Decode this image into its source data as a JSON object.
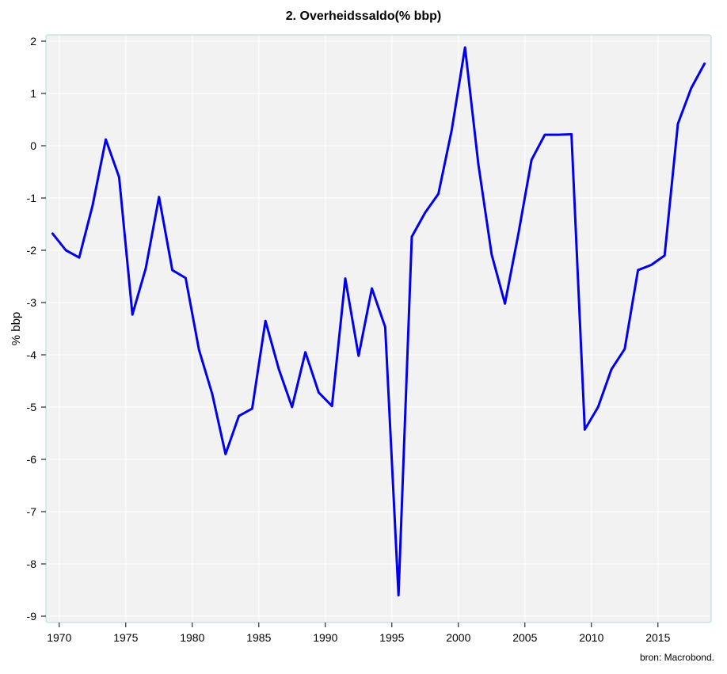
{
  "chart_data": {
    "type": "line",
    "title": "2. Overheidssaldo(% bbp)",
    "xlabel": "",
    "ylabel": "% bbp",
    "source": "bron: Macrobond.",
    "xlim": [
      1969,
      2019
    ],
    "ylim": [
      -9,
      2
    ],
    "x_ticks": [
      1970,
      1975,
      1980,
      1985,
      1990,
      1995,
      2000,
      2005,
      2010,
      2015
    ],
    "y_ticks": [
      2,
      1,
      0,
      -1,
      -2,
      -3,
      -4,
      -5,
      -6,
      -7,
      -8,
      -9
    ],
    "grid": true,
    "legend": "none",
    "colors": {
      "line": "#0000ee",
      "plot_background": "#f2f2f2",
      "plot_border": "#a8dcdc",
      "grid": "#ffffff"
    },
    "series": [
      {
        "x": [
          1969.5,
          1970.5,
          1971.5,
          1972.5,
          1973.5,
          1974.5,
          1975.5,
          1976.5,
          1977.5,
          1978.5,
          1979.5,
          1980.5,
          1981.5,
          1982.5,
          1983.5,
          1984.5,
          1985.5,
          1986.5,
          1987.5,
          1988.5,
          1989.5,
          1990.5,
          1991.5,
          1992.5,
          1993.5,
          1994.5,
          1995.5,
          1996.5,
          1997.5,
          1998.5,
          1999.5,
          2000.5,
          2001.5,
          2002.5,
          2003.5,
          2004.5,
          2005.5,
          2006.5,
          2007.5,
          2008.5,
          2009.5,
          2010.5,
          2011.5,
          2012.5,
          2013.5,
          2014.5,
          2015.5,
          2016.5,
          2017.5,
          2018.5
        ],
        "values": [
          -1.68,
          -2.0,
          -2.14,
          -1.15,
          0.12,
          -0.6,
          -3.23,
          -2.35,
          -0.98,
          -2.38,
          -2.53,
          -3.9,
          -4.75,
          -5.9,
          -5.17,
          -5.03,
          -3.35,
          -4.27,
          -5.0,
          -3.95,
          -4.72,
          -4.98,
          -2.54,
          -4.02,
          -2.73,
          -3.47,
          -8.6,
          -1.74,
          -1.28,
          -0.92,
          0.3,
          1.88,
          -0.35,
          -2.08,
          -3.02,
          -1.7,
          -0.27,
          0.21,
          0.21,
          0.22,
          -5.43,
          -5.0,
          -4.28,
          -3.89,
          -2.38,
          -2.28,
          -2.1,
          0.42,
          1.1,
          1.57
        ]
      }
    ]
  }
}
